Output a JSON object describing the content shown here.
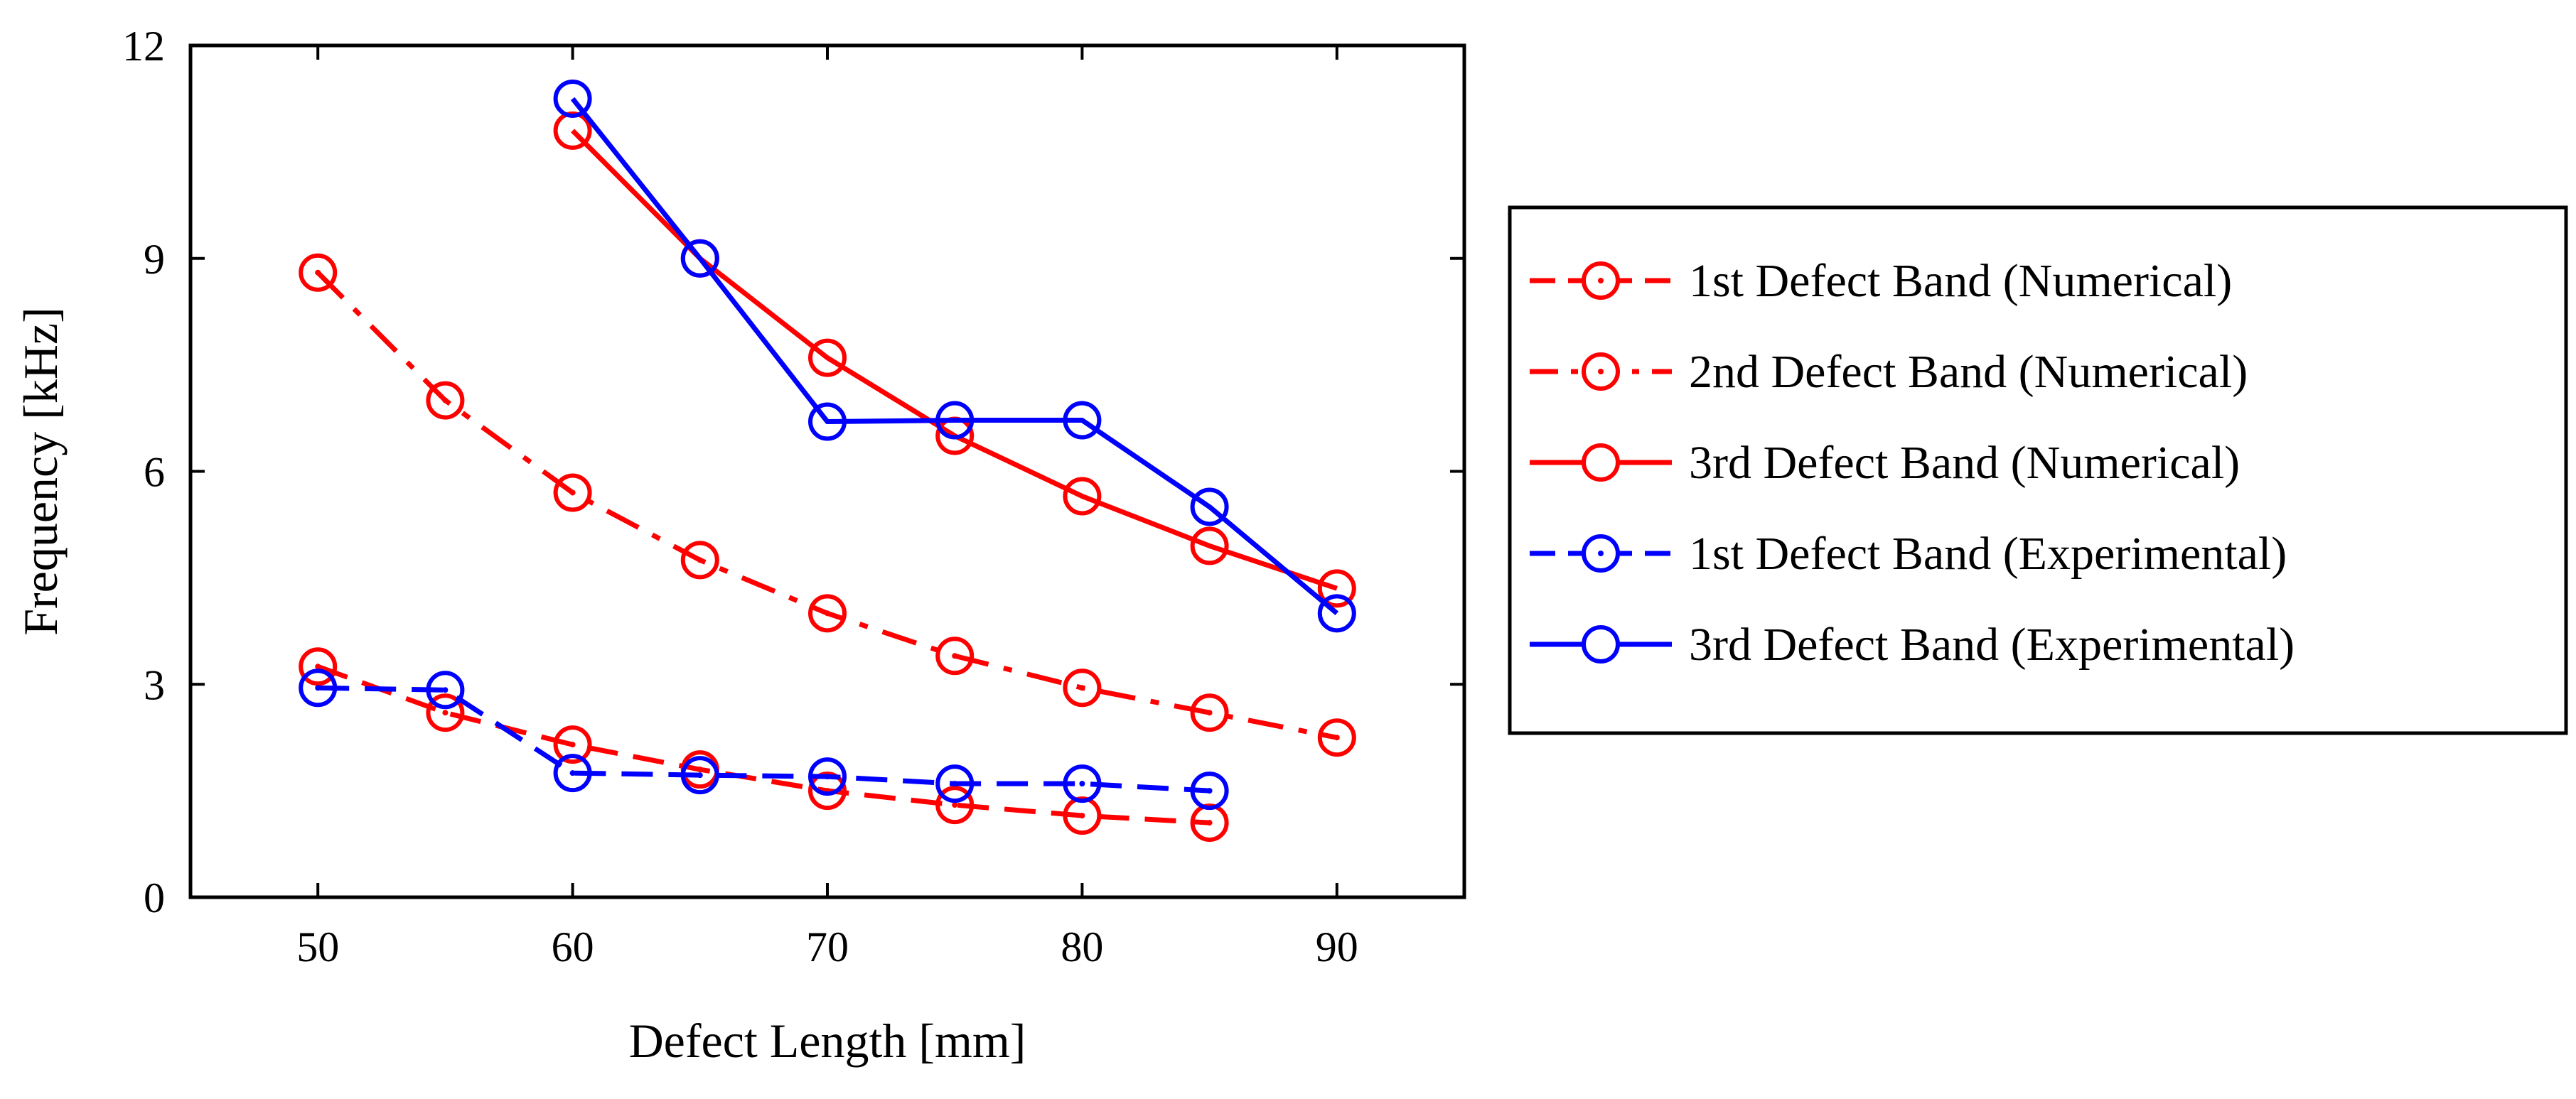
{
  "chart_data": {
    "type": "line",
    "title": "",
    "xlabel": "Defect Length [mm]",
    "ylabel": "Frequency [kHz]",
    "xlim": [
      45,
      95
    ],
    "ylim": [
      0,
      12
    ],
    "xticks": [
      50,
      60,
      70,
      80,
      90
    ],
    "yticks": [
      0,
      3,
      6,
      9,
      12
    ],
    "grid": false,
    "legend_position": "right-outside",
    "series": [
      {
        "name": "1st Defect Band (Numerical)",
        "color": "#ff0000",
        "dash": "dashed",
        "marker": "circle-dot",
        "x": [
          50,
          55,
          60,
          65,
          70,
          75,
          80,
          85
        ],
        "y": [
          3.25,
          2.6,
          2.15,
          1.8,
          1.5,
          1.3,
          1.15,
          1.05
        ]
      },
      {
        "name": "2nd Defect Band (Numerical)",
        "color": "#ff0000",
        "dash": "dashdot",
        "marker": "circle-dot",
        "x": [
          50,
          55,
          60,
          65,
          70,
          75,
          80,
          85,
          90
        ],
        "y": [
          8.8,
          7.0,
          5.7,
          4.75,
          4.0,
          3.4,
          2.95,
          2.6,
          2.25
        ]
      },
      {
        "name": "3rd Defect Band (Numerical)",
        "color": "#ff0000",
        "dash": "solid",
        "marker": "circle",
        "x": [
          60,
          65,
          70,
          75,
          80,
          85,
          90
        ],
        "y": [
          10.8,
          9.0,
          7.6,
          6.5,
          5.65,
          4.95,
          4.35
        ]
      },
      {
        "name": "1st Defect Band (Experimental)",
        "color": "#0000ff",
        "dash": "dashed",
        "marker": "circle-dot",
        "x": [
          50,
          55,
          60,
          65,
          70,
          75,
          80,
          85
        ],
        "y": [
          2.95,
          2.92,
          1.75,
          1.72,
          1.7,
          1.6,
          1.6,
          1.5
        ]
      },
      {
        "name": "3rd Defect Band (Experimental)",
        "color": "#0000ff",
        "dash": "solid",
        "marker": "circle",
        "x": [
          60,
          65,
          70,
          75,
          80,
          85,
          90
        ],
        "y": [
          11.25,
          9.0,
          6.7,
          6.72,
          6.72,
          5.5,
          4.0
        ]
      }
    ]
  }
}
